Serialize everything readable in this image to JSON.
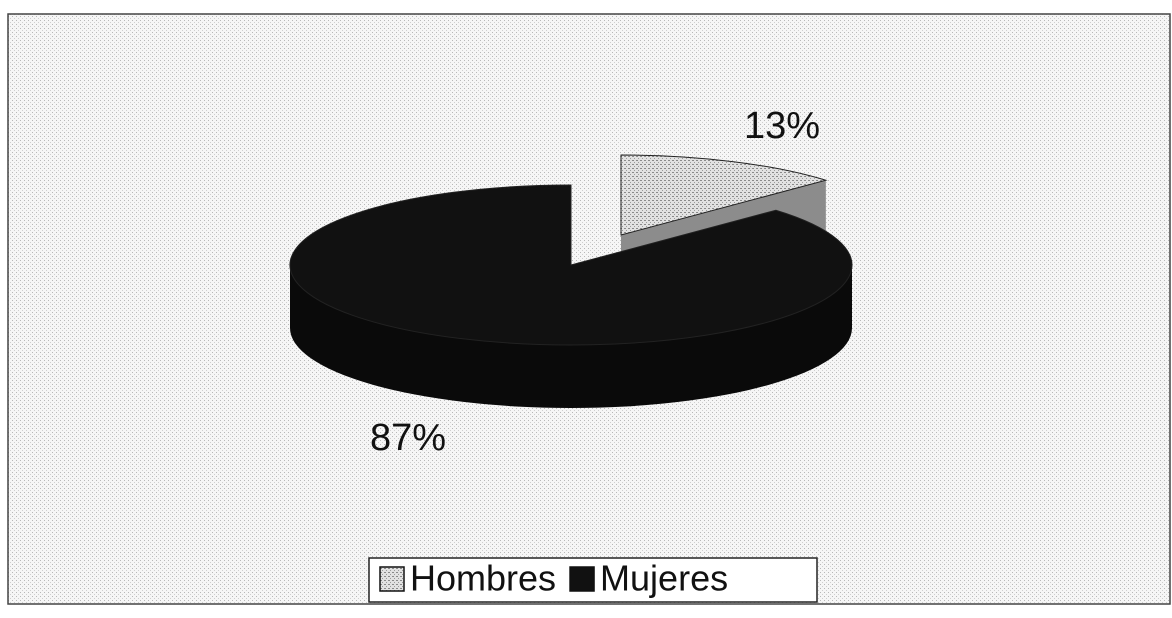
{
  "chart_data": {
    "type": "pie",
    "categories": [
      "Hombres",
      "Mujeres"
    ],
    "values": [
      13,
      87
    ],
    "value_labels": [
      "13%",
      "87%"
    ],
    "colors": [
      "#d4d4d4",
      "#111111"
    ],
    "legend": "bottom"
  }
}
